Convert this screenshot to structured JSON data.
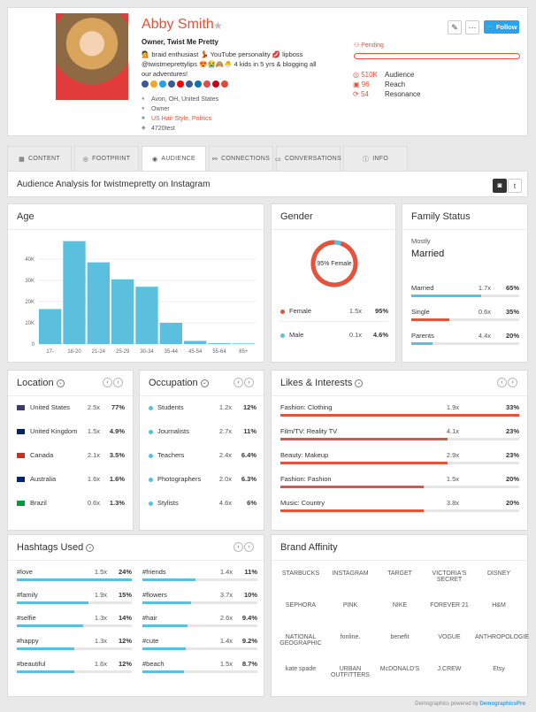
{
  "profile": {
    "name": "Abby Smith",
    "star": "★",
    "role": "Owner, Twist Me Pretty",
    "bio": "💁 braid enthusiast 💃 YouTube personality 💋 lipboss @twistmeprettylips 😍😭🙈🐣 4 kids in 5 yrs & blogging all our adventures!",
    "location": "Avon, OH, United States",
    "job": "Owner",
    "tags": "US Hair Style, Politics",
    "handle": "4720test",
    "pending": "Pending",
    "follow_label": "Follow",
    "stats": [
      {
        "value": "510K",
        "label": "Audience"
      },
      {
        "value": "96",
        "label": "Reach"
      },
      {
        "value": "54",
        "label": "Resonance"
      }
    ],
    "social_colors": [
      "#3b5998",
      "#f5a623",
      "#1da1f2",
      "#3b5998",
      "#ff0000",
      "#3b5998",
      "#0077b5",
      "#e04b4b",
      "#bd081c",
      "#dd4b39"
    ]
  },
  "tabs": [
    {
      "label": "CONTENT",
      "icon": "grid-icon"
    },
    {
      "label": "FOOTPRINT",
      "icon": "target-icon"
    },
    {
      "label": "AUDIENCE",
      "icon": "eye-icon"
    },
    {
      "label": "CONNECTIONS",
      "icon": "connections-icon"
    },
    {
      "label": "CONVERSATIONS",
      "icon": "chat-icon"
    },
    {
      "label": "INFO",
      "icon": "info-icon"
    }
  ],
  "analysis_title": "Audience Analysis for twistmepretty on Instagram",
  "age": {
    "title": "Age",
    "chart_data": {
      "type": "bar",
      "categories": [
        "17-",
        "18-20",
        "21-24",
        "25-29",
        "30-34",
        "35-44",
        "45-54",
        "55-64",
        "65+"
      ],
      "values": [
        16500,
        48500,
        38500,
        30500,
        27000,
        10000,
        1500,
        400,
        300
      ],
      "yticks": [
        "0",
        "10K",
        "20K",
        "30K",
        "40K"
      ],
      "ylim": [
        0,
        50000
      ],
      "color": "#5bc0de"
    }
  },
  "gender": {
    "title": "Gender",
    "center_label": "95% Female",
    "female_fraction": 0.95,
    "rows": [
      {
        "label": "Female",
        "mult": "1.5x",
        "pct": "95%",
        "color": "#e8513a"
      },
      {
        "label": "Male",
        "mult": "0.1x",
        "pct": "4.6%",
        "color": "#5bc0de"
      }
    ]
  },
  "family": {
    "title": "Family Status",
    "mostly_label": "Mostly",
    "mostly_value": "Married",
    "rows": [
      {
        "label": "Married",
        "mult": "1.7x",
        "pct": "65%",
        "fill": 0.65,
        "color": "#5bc0de"
      },
      {
        "label": "Single",
        "mult": "0.6x",
        "pct": "35%",
        "fill": 0.35,
        "color": "#e8513a"
      },
      {
        "label": "Parents",
        "mult": "4.4x",
        "pct": "20%",
        "fill": 0.2,
        "color": "#5bc0de"
      }
    ]
  },
  "location": {
    "title": "Location",
    "rows": [
      {
        "label": "United States",
        "mult": "2.5x",
        "pct": "77%",
        "flag": "#3c3b6e"
      },
      {
        "label": "United Kingdom",
        "mult": "1.5x",
        "pct": "4.9%",
        "flag": "#012169"
      },
      {
        "label": "Canada",
        "mult": "2.1x",
        "pct": "3.5%",
        "flag": "#d52b1e"
      },
      {
        "label": "Australia",
        "mult": "1.6x",
        "pct": "1.6%",
        "flag": "#00247d"
      },
      {
        "label": "Brazil",
        "mult": "0.6x",
        "pct": "1.3%",
        "flag": "#009b3a"
      }
    ]
  },
  "occupation": {
    "title": "Occupation",
    "rows": [
      {
        "label": "Students",
        "mult": "1.2x",
        "pct": "12%"
      },
      {
        "label": "Journalists",
        "mult": "2.7x",
        "pct": "11%"
      },
      {
        "label": "Teachers",
        "mult": "2.4x",
        "pct": "6.4%"
      },
      {
        "label": "Photographers",
        "mult": "2.0x",
        "pct": "6.3%"
      },
      {
        "label": "Stylists",
        "mult": "4.6x",
        "pct": "6%"
      }
    ]
  },
  "interests": {
    "title": "Likes & Interests",
    "rows": [
      {
        "label": "Fashion: Clothing",
        "mult": "1.9x",
        "pct": "33%",
        "fill": 1.0
      },
      {
        "label": "Film/TV: Reality TV",
        "mult": "4.1x",
        "pct": "23%",
        "fill": 0.7
      },
      {
        "label": "Beauty: Makeup",
        "mult": "2.9x",
        "pct": "23%",
        "fill": 0.7
      },
      {
        "label": "Fashion: Fashion",
        "mult": "1.5x",
        "pct": "20%",
        "fill": 0.6
      },
      {
        "label": "Music: Country",
        "mult": "3.8x",
        "pct": "20%",
        "fill": 0.6
      }
    ]
  },
  "hashtags": {
    "title": "Hashtags Used",
    "left": [
      {
        "label": "#love",
        "mult": "1.5x",
        "pct": "24%",
        "fill": 1.0
      },
      {
        "label": "#family",
        "mult": "1.9x",
        "pct": "15%",
        "fill": 0.62
      },
      {
        "label": "#selfie",
        "mult": "1.3x",
        "pct": "14%",
        "fill": 0.58
      },
      {
        "label": "#happy",
        "mult": "1.3x",
        "pct": "12%",
        "fill": 0.5
      },
      {
        "label": "#beautiful",
        "mult": "1.6x",
        "pct": "12%",
        "fill": 0.5
      }
    ],
    "right": [
      {
        "label": "#friends",
        "mult": "1.4x",
        "pct": "11%",
        "fill": 0.46
      },
      {
        "label": "#flowers",
        "mult": "3.7x",
        "pct": "10%",
        "fill": 0.42
      },
      {
        "label": "#hair",
        "mult": "2.6x",
        "pct": "9.4%",
        "fill": 0.39
      },
      {
        "label": "#cute",
        "mult": "1.4x",
        "pct": "9.2%",
        "fill": 0.38
      },
      {
        "label": "#beach",
        "mult": "1.5x",
        "pct": "8.7%",
        "fill": 0.36
      }
    ]
  },
  "brands": {
    "title": "Brand Affinity",
    "logos": [
      "STARBUCKS",
      "INSTAGRAM",
      "TARGET",
      "VICTORIA'S SECRET",
      "DISNEY",
      "SEPHORA",
      "PINK",
      "NIKE",
      "FOREVER 21",
      "H&M",
      "NATIONAL GEOGRAPHIC",
      "fonline.",
      "benefit",
      "VOGUE",
      "ANTHROPOLOGIE",
      "kate spade",
      "URBAN OUTFITTERS",
      "McDONALD'S",
      "J.CREW",
      "Etsy"
    ]
  },
  "footer": {
    "text": "Demographics powered by ",
    "brand": "DemographicsPro"
  }
}
